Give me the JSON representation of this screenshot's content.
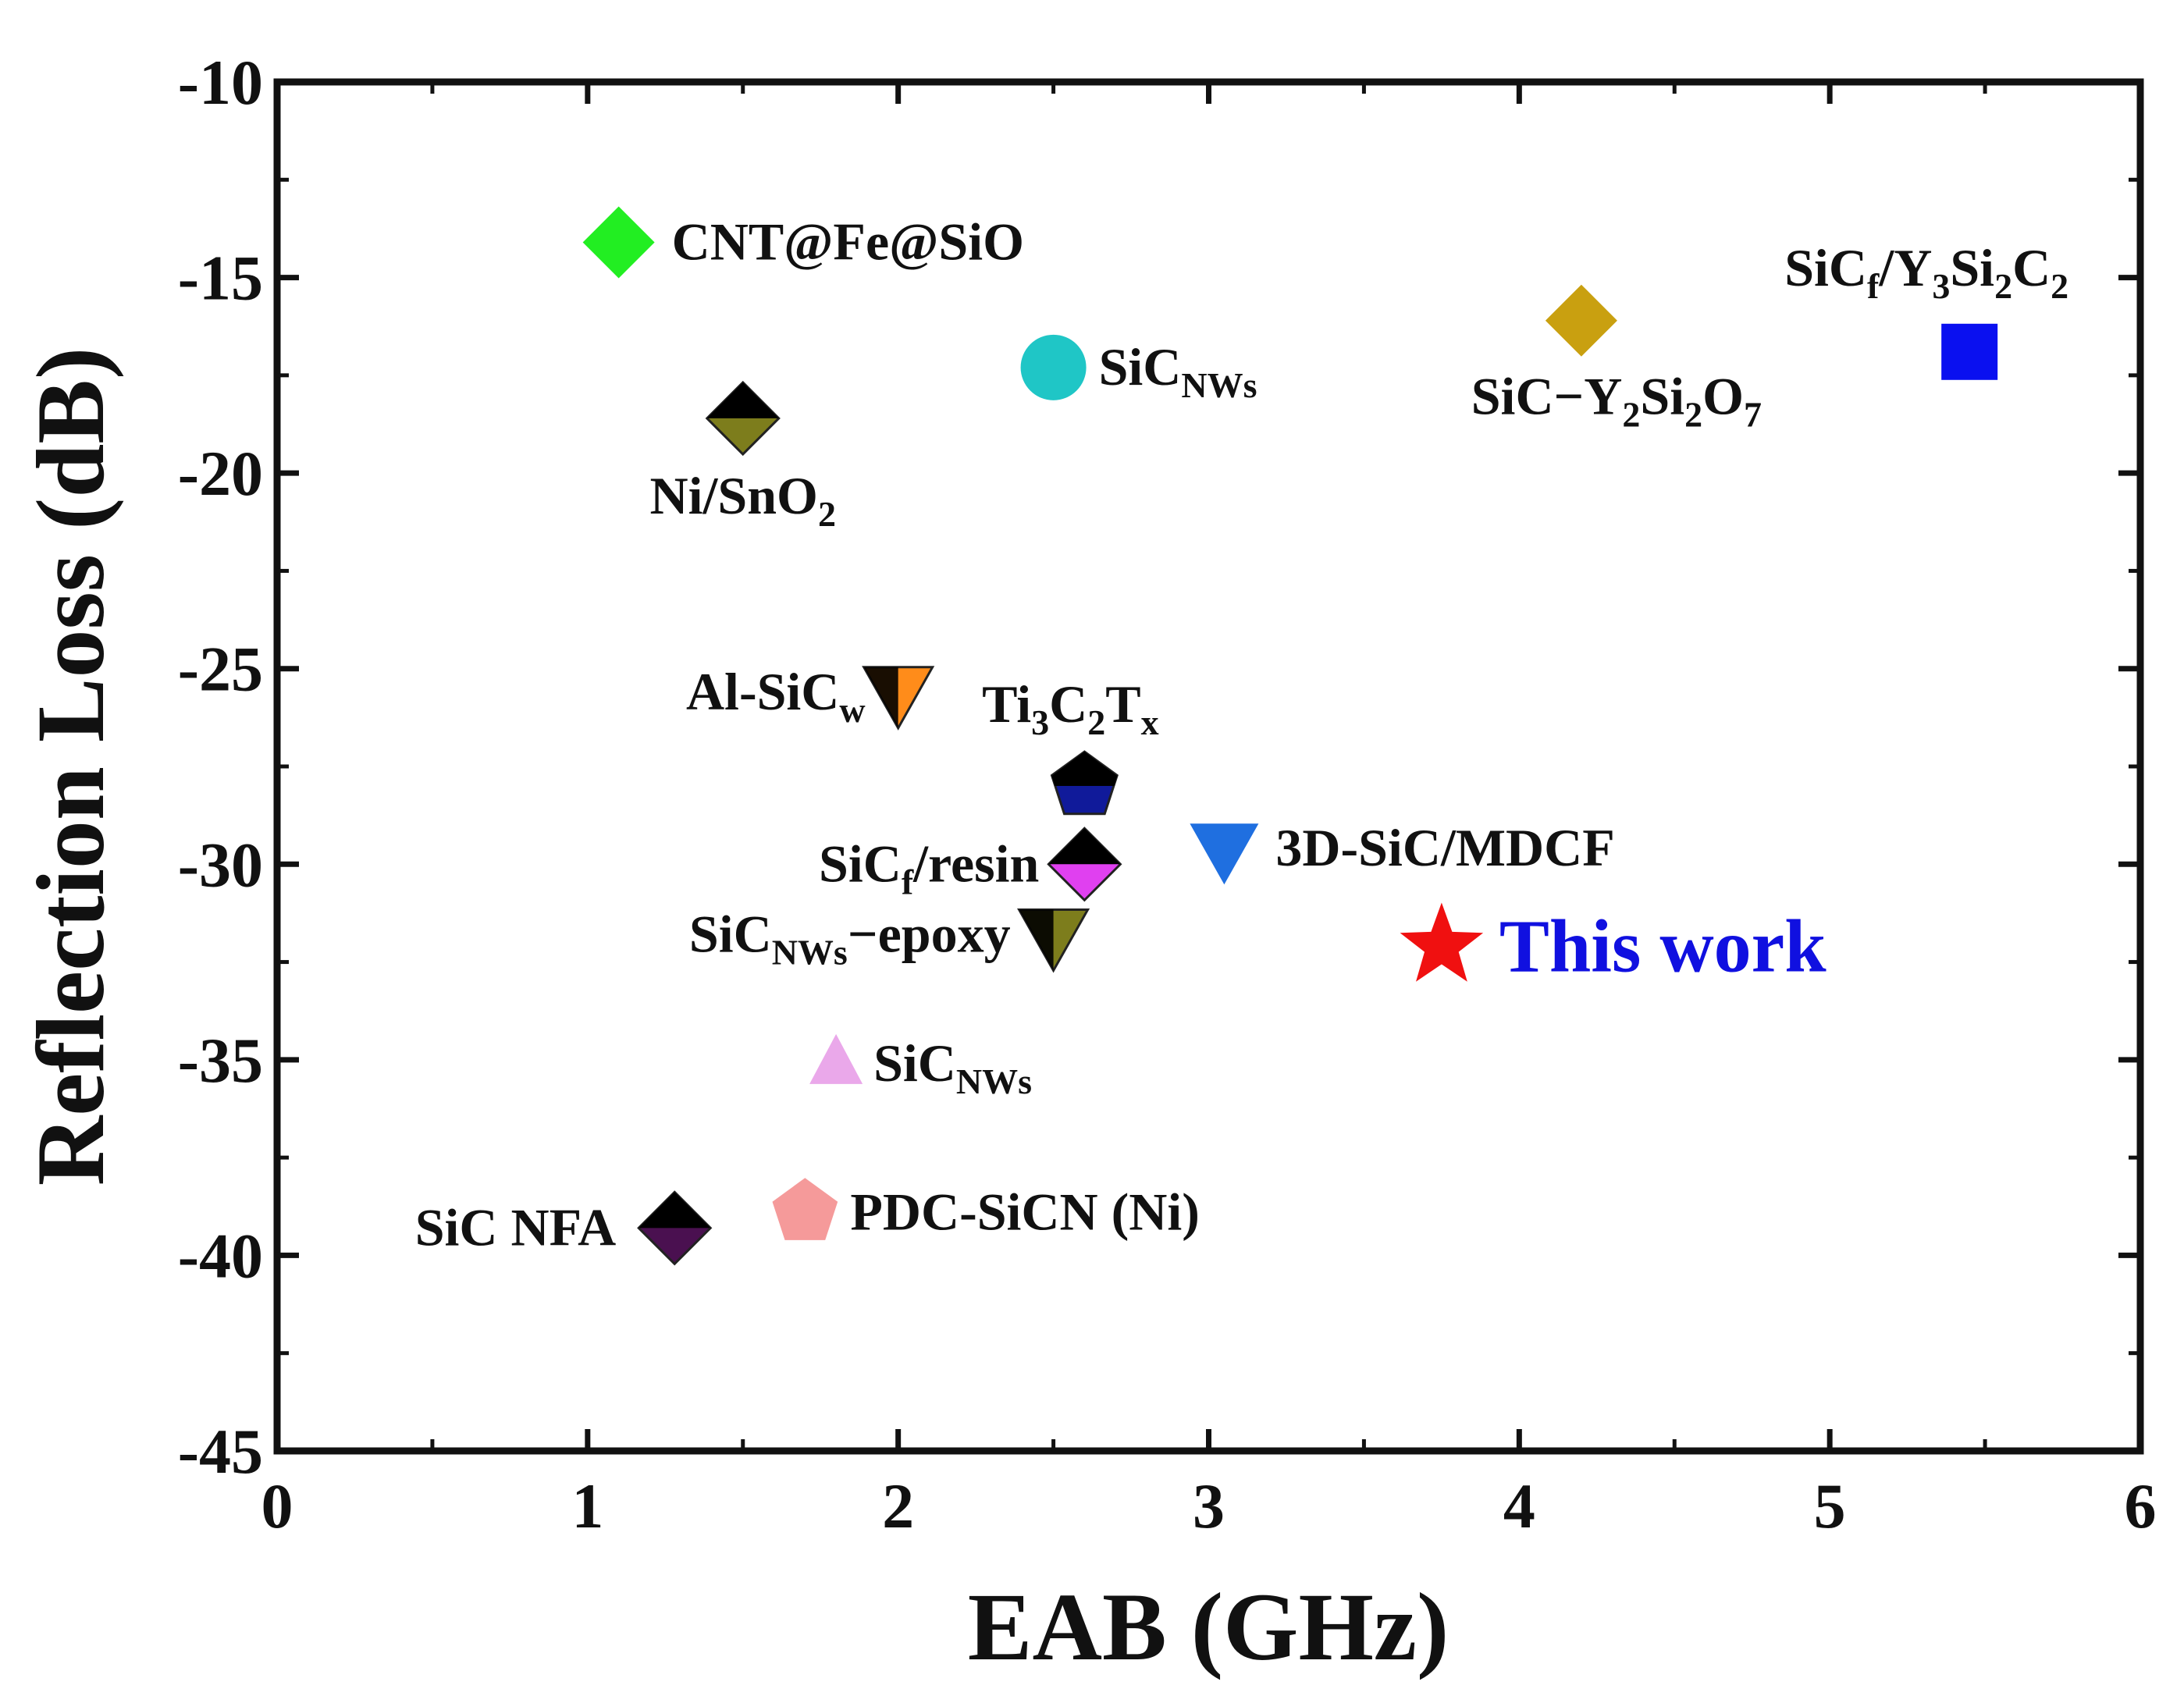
{
  "chart_data": {
    "type": "scatter",
    "title": "",
    "xlabel": "EAB (GHz)",
    "ylabel": "Reflection Loss (dB)",
    "xlim": [
      0,
      6
    ],
    "ylim": [
      -45,
      -10
    ],
    "xticks": [
      0,
      1,
      2,
      3,
      4,
      5,
      6
    ],
    "yticks": [
      -10,
      -15,
      -20,
      -25,
      -30,
      -35,
      -40,
      -45
    ],
    "grid": false,
    "points": [
      {
        "id": "cnt-fe-sio",
        "x": 1.1,
        "y": -14.1,
        "marker": "diamond",
        "color": "#22ee22",
        "label_parts": [
          {
            "t": "CNT@Fe@SiO"
          }
        ],
        "label_pos": "right"
      },
      {
        "id": "ni-sno2",
        "x": 1.5,
        "y": -18.6,
        "marker": "diamond-half",
        "color": "#7d7d1c",
        "label_parts": [
          {
            "t": "Ni/SnO"
          },
          {
            "t": "2",
            "sub": true
          }
        ],
        "label_pos": "below"
      },
      {
        "id": "sic-nws-1",
        "x": 2.5,
        "y": -17.3,
        "marker": "circle",
        "color": "#1fc6c6",
        "label_parts": [
          {
            "t": "SiC"
          },
          {
            "t": "NWs",
            "sub": true
          }
        ],
        "label_pos": "right"
      },
      {
        "id": "sic-y2si2o7",
        "x": 4.2,
        "y": -16.1,
        "marker": "diamond",
        "color": "#c9a010",
        "label_parts": [
          {
            "t": "SiC−Y"
          },
          {
            "t": "2",
            "sub": true
          },
          {
            "t": "Si"
          },
          {
            "t": "2",
            "sub": true
          },
          {
            "t": "O"
          },
          {
            "t": "7",
            "sub": true
          }
        ],
        "label_pos": "below"
      },
      {
        "id": "sicf-y3si2c2",
        "x": 5.45,
        "y": -16.9,
        "marker": "square",
        "color": "#0a10f0",
        "label_parts": [
          {
            "t": "SiC"
          },
          {
            "t": "f",
            "sub": true
          },
          {
            "t": "/Y"
          },
          {
            "t": "3",
            "sub": true
          },
          {
            "t": "Si"
          },
          {
            "t": "2",
            "sub": true
          },
          {
            "t": "C"
          },
          {
            "t": "2",
            "sub": true
          }
        ],
        "label_pos": "above-left"
      },
      {
        "id": "al-sicw",
        "x": 2.0,
        "y": -25.6,
        "marker": "triangle-down-half",
        "color": "#ff8c1a",
        "label_parts": [
          {
            "t": "Al-SiC"
          },
          {
            "t": "w",
            "sub": true
          }
        ],
        "label_pos": "left"
      },
      {
        "id": "ti3c2tx",
        "x": 2.6,
        "y": -28.0,
        "marker": "pentagon-half",
        "color": "#101a9a",
        "label_parts": [
          {
            "t": "Ti"
          },
          {
            "t": "3",
            "sub": true
          },
          {
            "t": "C"
          },
          {
            "t": "2",
            "sub": true
          },
          {
            "t": "T"
          },
          {
            "t": "x",
            "sub": true
          }
        ],
        "label_pos": "above"
      },
      {
        "id": "sicf-resin",
        "x": 2.6,
        "y": -30.0,
        "marker": "diamond-half",
        "color": "#e040f0",
        "label_parts": [
          {
            "t": "SiC"
          },
          {
            "t": "f",
            "sub": true
          },
          {
            "t": "/resin"
          }
        ],
        "label_pos": "left"
      },
      {
        "id": "3d-sic-mdcf",
        "x": 3.05,
        "y": -29.6,
        "marker": "triangle-down",
        "color": "#1f6fe0",
        "label_parts": [
          {
            "t": "3D-SiC/MDCF"
          }
        ],
        "label_pos": "right"
      },
      {
        "id": "sic-nws-epoxy",
        "x": 2.5,
        "y": -31.8,
        "marker": "triangle-down-half",
        "color": "#7d7d1c",
        "label_parts": [
          {
            "t": "SiC"
          },
          {
            "t": "NWs",
            "sub": true
          },
          {
            "t": "−epoxy"
          }
        ],
        "label_pos": "left"
      },
      {
        "id": "this-work",
        "x": 3.75,
        "y": -32.1,
        "marker": "star",
        "color": "#f01010",
        "label_parts": [
          {
            "t": "This work"
          }
        ],
        "label_pos": "right",
        "label_color": "#1010e0",
        "big": true
      },
      {
        "id": "sic-nws-2",
        "x": 1.8,
        "y": -35.1,
        "marker": "triangle-up",
        "color": "#eaa8ea",
        "label_parts": [
          {
            "t": "SiC"
          },
          {
            "t": "NWs",
            "sub": true
          }
        ],
        "label_pos": "right"
      },
      {
        "id": "sic-nfa",
        "x": 1.28,
        "y": -39.3,
        "marker": "diamond-half",
        "color": "#4a1050",
        "label_parts": [
          {
            "t": "SiC NFA"
          }
        ],
        "label_pos": "left"
      },
      {
        "id": "pdc-sicn-ni",
        "x": 1.7,
        "y": -38.9,
        "marker": "pentagon",
        "color": "#f59a9a",
        "label_parts": [
          {
            "t": "PDC-SiCN (Ni)"
          }
        ],
        "label_pos": "right"
      }
    ]
  }
}
